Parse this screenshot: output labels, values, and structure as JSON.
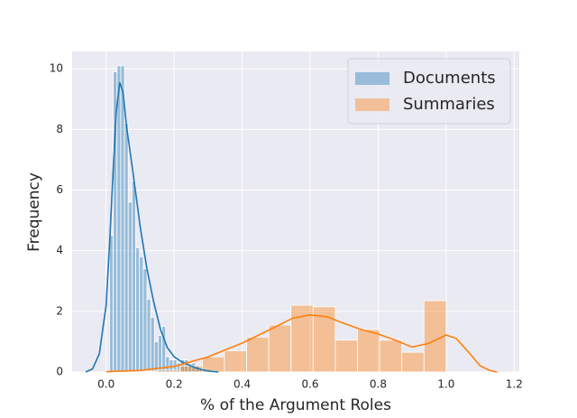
{
  "chart_data": {
    "type": "histogram",
    "xlabel": "% of the Argument Roles",
    "ylabel": "Frequency",
    "xlim": [
      -0.1,
      1.215
    ],
    "ylim": [
      0,
      10.57
    ],
    "xticks": [
      {
        "value": 0,
        "label": "0.0"
      },
      0.2,
      0.4,
      0.6,
      0.8,
      {
        "value": 1,
        "label": "1.0"
      },
      1.2
    ],
    "yticks": [
      0,
      2,
      4,
      6,
      8,
      10
    ],
    "grid": true,
    "legend": "upper right",
    "series": [
      {
        "name": "Documents",
        "color": "#1f77b4",
        "bins": [
          0.01,
          0.021,
          0.032,
          0.043,
          0.054,
          0.065,
          0.076,
          0.087,
          0.098,
          0.109,
          0.12,
          0.131,
          0.142,
          0.153,
          0.164,
          0.175,
          0.186,
          0.197,
          0.208,
          0.219,
          0.23,
          0.241,
          0.252,
          0.263,
          0.274,
          0.285,
          0.296,
          0.307,
          0.318,
          0.329
        ],
        "counts": [
          4.5,
          9.9,
          10.1,
          10.1,
          8.2,
          5.6,
          6.3,
          4.1,
          3.8,
          3.4,
          2.4,
          1.8,
          1.0,
          1.2,
          1.5,
          0.5,
          0.4,
          0.4,
          0.3,
          0.4,
          0.4,
          0.2,
          0.3,
          0.2,
          0.1,
          0.1,
          0.1,
          0.05,
          0.05
        ],
        "kde_x": [
          -0.06,
          -0.04,
          -0.02,
          0.0,
          0.01,
          0.02,
          0.03,
          0.04,
          0.05,
          0.06,
          0.08,
          0.1,
          0.12,
          0.14,
          0.16,
          0.18,
          0.2,
          0.22,
          0.24,
          0.26,
          0.28,
          0.3,
          0.33
        ],
        "kde_y": [
          0,
          0.1,
          0.6,
          2.2,
          4.2,
          6.5,
          8.6,
          9.55,
          9.2,
          8.1,
          6.5,
          4.8,
          3.4,
          2.3,
          1.4,
          0.8,
          0.5,
          0.35,
          0.25,
          0.15,
          0.08,
          0.03,
          0
        ]
      },
      {
        "name": "Summaries",
        "color": "#ff7f0e",
        "bins": [
          0.0871,
          0.1523,
          0.2175,
          0.2827,
          0.3479,
          0.4131,
          0.4783,
          0.5435,
          0.6087,
          0.6739,
          0.7391,
          0.8043,
          0.8695,
          0.9347,
          1.0
        ],
        "counts": [
          0.03,
          0.06,
          0.2,
          0.5,
          0.7,
          1.15,
          1.55,
          2.2,
          2.15,
          1.05,
          1.4,
          1.05,
          0.65,
          2.35
        ],
        "kde_x": [
          0.0,
          0.1,
          0.2,
          0.3,
          0.4,
          0.5,
          0.55,
          0.6,
          0.65,
          0.7,
          0.75,
          0.8,
          0.85,
          0.9,
          0.95,
          1.0,
          1.03,
          1.07,
          1.1,
          1.13,
          1.15
        ],
        "kde_y": [
          0.01,
          0.05,
          0.18,
          0.5,
          0.95,
          1.5,
          1.78,
          1.88,
          1.82,
          1.6,
          1.4,
          1.25,
          1.05,
          0.82,
          0.95,
          1.22,
          1.1,
          0.6,
          0.2,
          0.04,
          0
        ]
      }
    ]
  }
}
